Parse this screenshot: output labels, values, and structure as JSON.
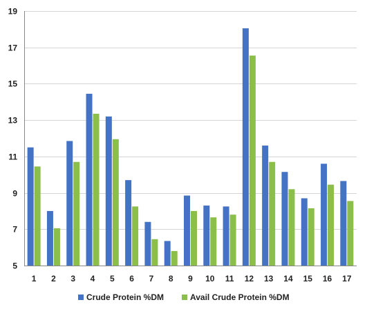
{
  "chart_data": {
    "type": "bar",
    "categories": [
      "1",
      "2",
      "3",
      "4",
      "5",
      "6",
      "7",
      "8",
      "9",
      "10",
      "11",
      "12",
      "13",
      "14",
      "15",
      "16",
      "17"
    ],
    "series": [
      {
        "name": "Crude Protein %DM",
        "color": "#4472C4",
        "values": [
          11.5,
          8.0,
          11.85,
          14.45,
          13.2,
          9.7,
          7.4,
          6.35,
          8.85,
          8.3,
          8.25,
          18.05,
          11.6,
          10.15,
          8.7,
          10.6,
          9.65
        ]
      },
      {
        "name": "Avail Crude Protein %DM",
        "color": "#8CBE4A",
        "values": [
          10.45,
          7.05,
          10.7,
          13.35,
          11.95,
          8.25,
          6.45,
          5.8,
          8.0,
          7.65,
          7.8,
          16.55,
          10.7,
          9.2,
          8.15,
          9.45,
          8.55
        ]
      }
    ],
    "title": "",
    "xlabel": "",
    "ylabel": "",
    "ylim": [
      5,
      19
    ],
    "yticks": [
      5,
      7,
      9,
      11,
      13,
      15,
      17,
      19
    ],
    "grid": true,
    "legend_position": "bottom"
  }
}
